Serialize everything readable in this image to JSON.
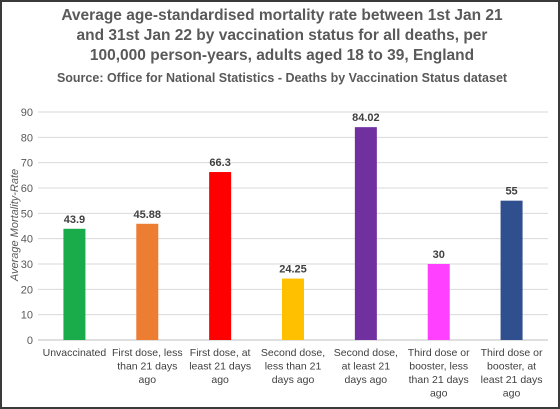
{
  "chart_data": {
    "type": "bar",
    "title_lines": [
      "Average age-standardised mortality rate between 1st Jan 21",
      "and  31st Jan 22 by vaccination status for all deaths, per",
      "100,000 person-years, adults aged 18 to 39, England"
    ],
    "subtitle": "Source: Office for National Statistics - Deaths by Vaccination Status dataset",
    "ylabel": "Average Mortality-Rate",
    "xlabel": "",
    "ylim": [
      0,
      90
    ],
    "yticks": [
      "0",
      "10",
      "20",
      "30",
      "40",
      "50",
      "60",
      "70",
      "80",
      "90"
    ],
    "grid": true,
    "categories": [
      [
        "Unvaccinated"
      ],
      [
        "First dose, less",
        "than 21 days",
        "ago"
      ],
      [
        "First dose, at",
        "least 21 days",
        "ago"
      ],
      [
        "Second dose,",
        "less than 21",
        "days ago"
      ],
      [
        "Second dose,",
        "at least 21",
        "days ago"
      ],
      [
        "Third dose or",
        "booster, less",
        "than 21 days",
        "ago"
      ],
      [
        "Third dose or",
        "booster, at",
        "least 21 days",
        "ago"
      ]
    ],
    "values": [
      43.9,
      45.88,
      66.3,
      24.25,
      84.02,
      30,
      55
    ],
    "value_labels": [
      "43.9",
      "45.88",
      "66.3",
      "24.25",
      "84.02",
      "30",
      "55"
    ],
    "colors": [
      "#1aab4b",
      "#ed7d31",
      "#ff0000",
      "#ffc000",
      "#7030a0",
      "#ff40ff",
      "#2f4f8f"
    ]
  }
}
